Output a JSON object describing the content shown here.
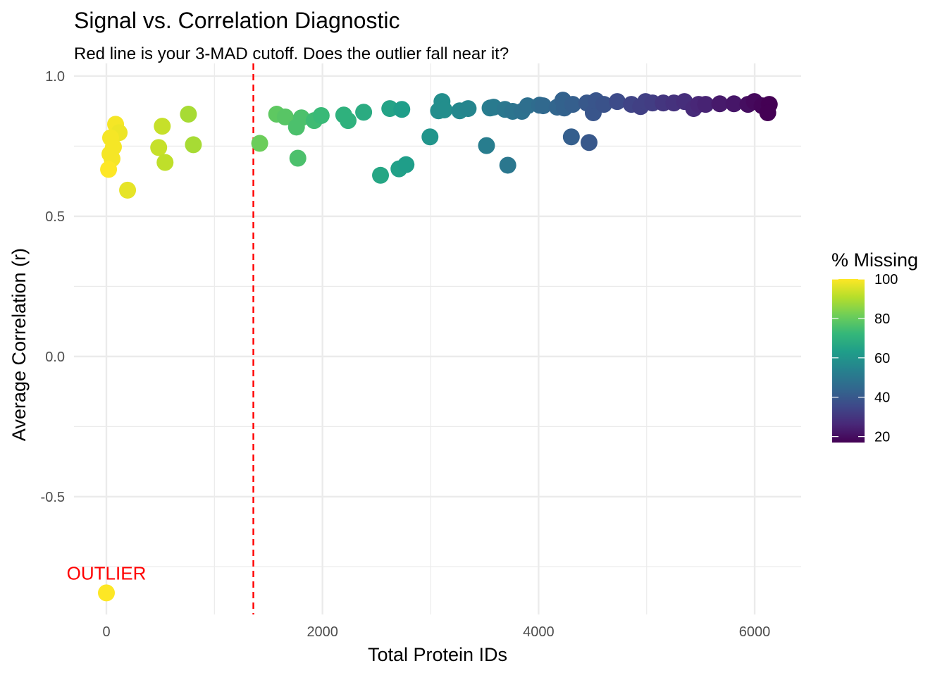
{
  "chart_data": {
    "type": "scatter",
    "title": "Signal vs. Correlation Diagnostic",
    "subtitle": "Red line is your 3-MAD cutoff. Does the outlier fall near it?",
    "xlabel": "Total Protein IDs",
    "ylabel": "Average Correlation (r)",
    "xlim": [
      -300,
      6430
    ],
    "ylim": [
      -0.92,
      1.045
    ],
    "x_ticks": [
      0,
      2000,
      4000,
      6000
    ],
    "x_tick_labels": [
      "0",
      "2000",
      "4000",
      "6000"
    ],
    "y_ticks": [
      -0.5,
      0.0,
      0.5,
      1.0
    ],
    "y_tick_labels": [
      "-0.5",
      "0.0",
      "0.5",
      "1.0"
    ],
    "grid": true,
    "cutoff_line": {
      "x": 1360,
      "color": "#FF0000",
      "style": "dashed"
    },
    "annotation": {
      "text": "OUTLIER",
      "x": 0,
      "y": -0.77,
      "color": "#FF0000"
    },
    "legend": {
      "title": "% Missing",
      "placement": "right",
      "type": "colorbar",
      "colormap": "viridis",
      "range": [
        17,
        100
      ],
      "ticks": [
        20,
        40,
        60,
        80,
        100
      ],
      "tick_labels": [
        "20",
        "40",
        "60",
        "80",
        "100"
      ]
    },
    "points": [
      {
        "x": 85,
        "y": 0.828,
        "missing": 99
      },
      {
        "x": 118,
        "y": 0.798,
        "missing": 98
      },
      {
        "x": 39,
        "y": 0.78,
        "missing": 99
      },
      {
        "x": 65,
        "y": 0.747,
        "missing": 99
      },
      {
        "x": 33,
        "y": 0.722,
        "missing": 99
      },
      {
        "x": 52,
        "y": 0.705,
        "missing": 99
      },
      {
        "x": 20,
        "y": 0.667,
        "missing": 100
      },
      {
        "x": 196,
        "y": 0.593,
        "missing": 97
      },
      {
        "x": 517,
        "y": 0.821,
        "missing": 93
      },
      {
        "x": 484,
        "y": 0.745,
        "missing": 93
      },
      {
        "x": 543,
        "y": 0.692,
        "missing": 92
      },
      {
        "x": 759,
        "y": 0.864,
        "missing": 89
      },
      {
        "x": 805,
        "y": 0.755,
        "missing": 89
      },
      {
        "x": 0,
        "y": -0.843,
        "missing": 100
      },
      {
        "x": 1419,
        "y": 0.76,
        "missing": 81
      },
      {
        "x": 1576,
        "y": 0.864,
        "missing": 79
      },
      {
        "x": 1655,
        "y": 0.854,
        "missing": 78
      },
      {
        "x": 1759,
        "y": 0.818,
        "missing": 76
      },
      {
        "x": 1805,
        "y": 0.851,
        "missing": 76
      },
      {
        "x": 1923,
        "y": 0.841,
        "missing": 74
      },
      {
        "x": 1988,
        "y": 0.859,
        "missing": 73
      },
      {
        "x": 1772,
        "y": 0.707,
        "missing": 76
      },
      {
        "x": 2197,
        "y": 0.861,
        "missing": 70
      },
      {
        "x": 2237,
        "y": 0.841,
        "missing": 70
      },
      {
        "x": 2381,
        "y": 0.871,
        "missing": 68
      },
      {
        "x": 2537,
        "y": 0.646,
        "missing": 66
      },
      {
        "x": 2623,
        "y": 0.884,
        "missing": 65
      },
      {
        "x": 2708,
        "y": 0.669,
        "missing": 64
      },
      {
        "x": 2734,
        "y": 0.881,
        "missing": 63
      },
      {
        "x": 2773,
        "y": 0.684,
        "missing": 63
      },
      {
        "x": 2995,
        "y": 0.783,
        "missing": 60
      },
      {
        "x": 3074,
        "y": 0.876,
        "missing": 58
      },
      {
        "x": 3106,
        "y": 0.909,
        "missing": 58
      },
      {
        "x": 3126,
        "y": 0.879,
        "missing": 58
      },
      {
        "x": 3270,
        "y": 0.876,
        "missing": 56
      },
      {
        "x": 3348,
        "y": 0.884,
        "missing": 55
      },
      {
        "x": 3518,
        "y": 0.752,
        "missing": 52
      },
      {
        "x": 3551,
        "y": 0.886,
        "missing": 52
      },
      {
        "x": 3584,
        "y": 0.889,
        "missing": 51
      },
      {
        "x": 3689,
        "y": 0.881,
        "missing": 50
      },
      {
        "x": 3715,
        "y": 0.682,
        "missing": 50
      },
      {
        "x": 3760,
        "y": 0.874,
        "missing": 49
      },
      {
        "x": 3846,
        "y": 0.874,
        "missing": 48
      },
      {
        "x": 3898,
        "y": 0.894,
        "missing": 47
      },
      {
        "x": 4009,
        "y": 0.896,
        "missing": 46
      },
      {
        "x": 4042,
        "y": 0.894,
        "missing": 45
      },
      {
        "x": 4172,
        "y": 0.889,
        "missing": 44
      },
      {
        "x": 4225,
        "y": 0.914,
        "missing": 43
      },
      {
        "x": 4238,
        "y": 0.886,
        "missing": 43
      },
      {
        "x": 4303,
        "y": 0.783,
        "missing": 42
      },
      {
        "x": 4316,
        "y": 0.899,
        "missing": 42
      },
      {
        "x": 4467,
        "y": 0.763,
        "missing": 40
      },
      {
        "x": 4447,
        "y": 0.904,
        "missing": 40
      },
      {
        "x": 4506,
        "y": 0.869,
        "missing": 39
      },
      {
        "x": 4532,
        "y": 0.912,
        "missing": 39
      },
      {
        "x": 4604,
        "y": 0.899,
        "missing": 38
      },
      {
        "x": 4728,
        "y": 0.909,
        "missing": 36
      },
      {
        "x": 4859,
        "y": 0.899,
        "missing": 34
      },
      {
        "x": 4944,
        "y": 0.891,
        "missing": 33
      },
      {
        "x": 4990,
        "y": 0.909,
        "missing": 33
      },
      {
        "x": 5055,
        "y": 0.904,
        "missing": 32
      },
      {
        "x": 5154,
        "y": 0.904,
        "missing": 30
      },
      {
        "x": 5252,
        "y": 0.904,
        "missing": 29
      },
      {
        "x": 5350,
        "y": 0.909,
        "missing": 28
      },
      {
        "x": 5435,
        "y": 0.884,
        "missing": 27
      },
      {
        "x": 5481,
        "y": 0.899,
        "missing": 26
      },
      {
        "x": 5546,
        "y": 0.899,
        "missing": 25
      },
      {
        "x": 5677,
        "y": 0.901,
        "missing": 23
      },
      {
        "x": 5808,
        "y": 0.901,
        "missing": 22
      },
      {
        "x": 5938,
        "y": 0.899,
        "missing": 20
      },
      {
        "x": 5997,
        "y": 0.909,
        "missing": 19
      },
      {
        "x": 6069,
        "y": 0.894,
        "missing": 18
      },
      {
        "x": 6135,
        "y": 0.899,
        "missing": 17
      },
      {
        "x": 6121,
        "y": 0.869,
        "missing": 17
      }
    ]
  }
}
